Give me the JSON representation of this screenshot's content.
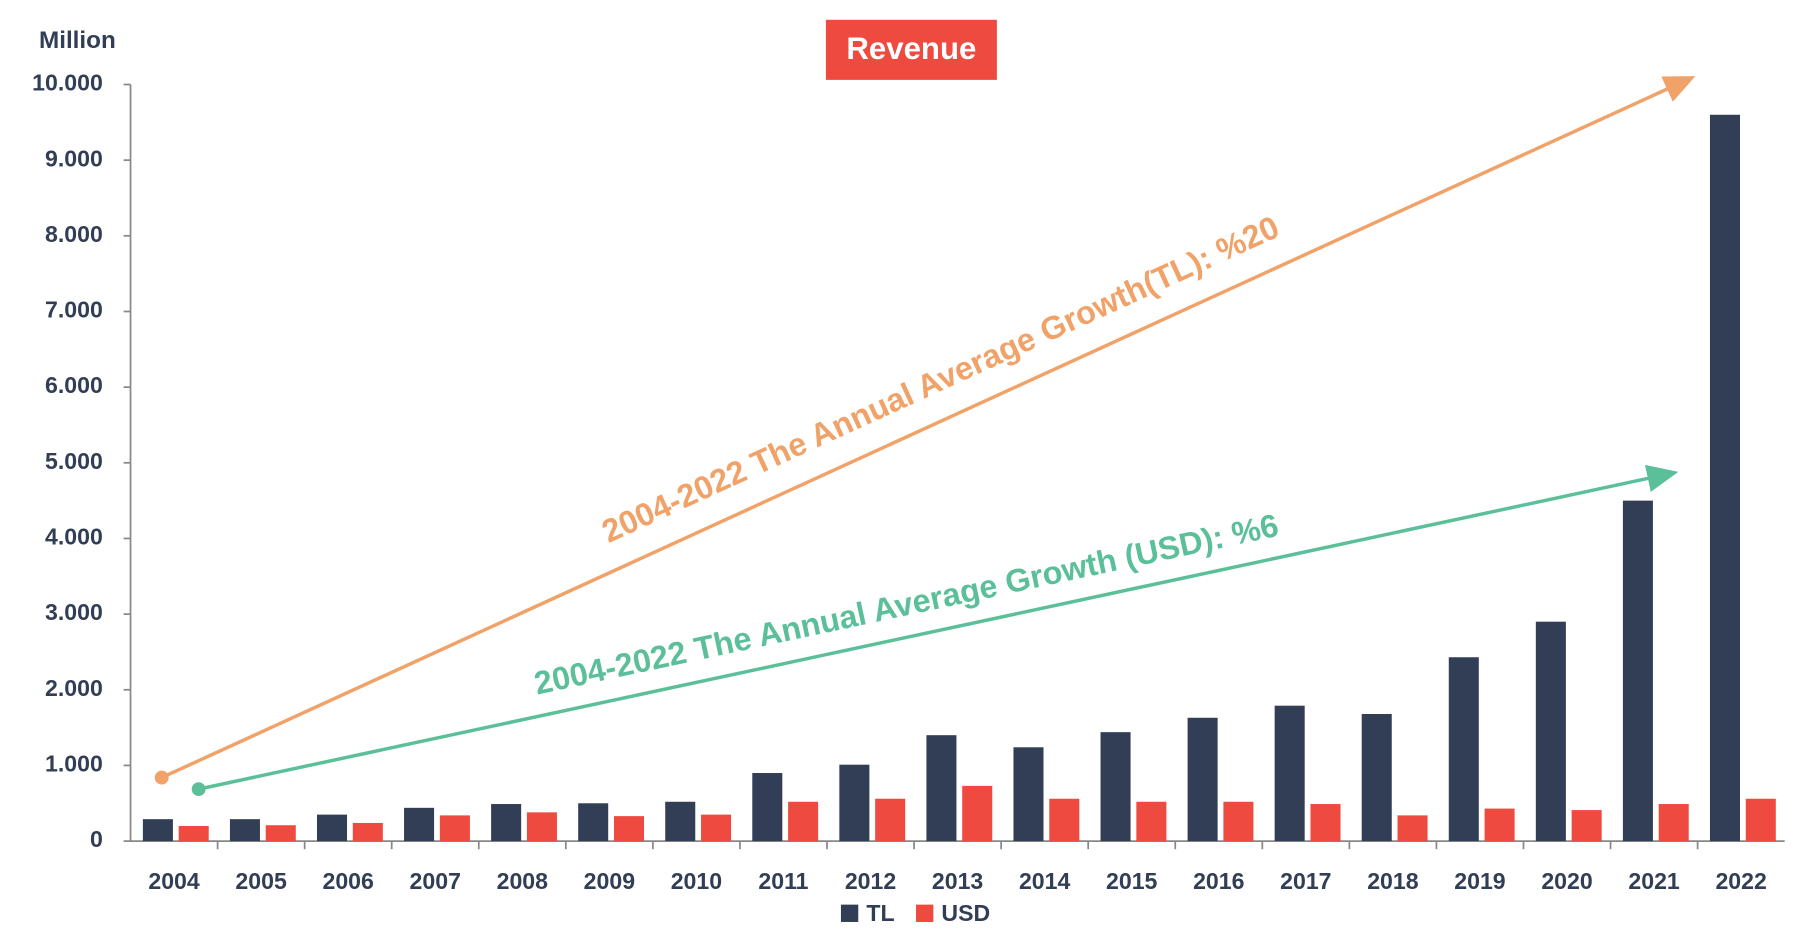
{
  "chart_data": {
    "type": "bar",
    "title": "Revenue",
    "y_unit": "Million",
    "categories": [
      "2004",
      "2005",
      "2006",
      "2007",
      "2008",
      "2009",
      "2010",
      "2011",
      "2012",
      "2013",
      "2014",
      "2015",
      "2016",
      "2017",
      "2018",
      "2019",
      "2020",
      "2021",
      "2022"
    ],
    "series": [
      {
        "name": "TL",
        "color": "#323e55",
        "values": [
          290,
          290,
          350,
          440,
          490,
          500,
          520,
          900,
          1010,
          1400,
          1240,
          1440,
          1630,
          1790,
          1680,
          2430,
          2900,
          4500,
          9600
        ]
      },
      {
        "name": "USD",
        "color": "#ef4a3f",
        "values": [
          200,
          210,
          240,
          340,
          380,
          330,
          350,
          520,
          560,
          730,
          560,
          520,
          520,
          490,
          340,
          430,
          410,
          490,
          560
        ]
      }
    ],
    "ylim": [
      0,
      10000
    ],
    "yticks": [
      0,
      {
        "value": 1000,
        "label": "1.000"
      },
      {
        "value": 2000,
        "label": "2.000"
      },
      {
        "value": 3000,
        "label": "3.000"
      },
      {
        "value": 4000,
        "label": "4.000"
      },
      {
        "value": 5000,
        "label": "5.000"
      },
      {
        "value": 6000,
        "label": "6.000"
      },
      {
        "value": 7000,
        "label": "7.000"
      },
      {
        "value": 8000,
        "label": "8.000"
      },
      {
        "value": 9000,
        "label": "9.000"
      },
      {
        "value": 10000,
        "label": "10.000"
      }
    ],
    "annotations": [
      "2004-2022  The Annual Average Growth(TL): %20",
      "2004-2022 The Annual Average Growth (USD): %6"
    ]
  }
}
